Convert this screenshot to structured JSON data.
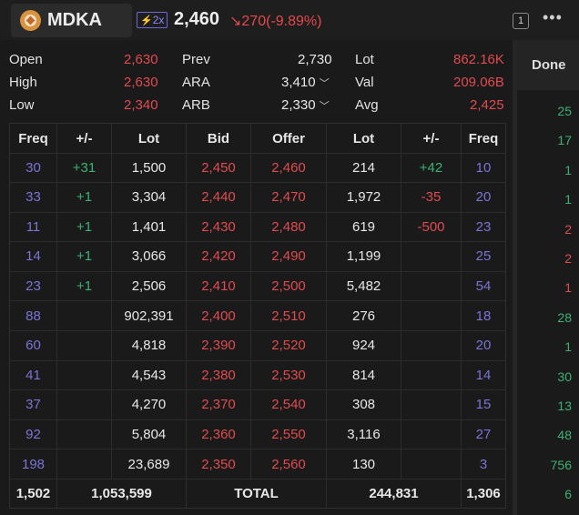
{
  "header": {
    "ticker": "MDKA",
    "leverage": "2x",
    "price": "2,460",
    "change": "270",
    "change_pct": "(-9.89%)",
    "window_number": "1",
    "more_icon": "more-horizontal-icon"
  },
  "summary": {
    "open_label": "Open",
    "open": "2,630",
    "high_label": "High",
    "high": "2,630",
    "low_label": "Low",
    "low": "2,340",
    "prev_label": "Prev",
    "prev": "2,730",
    "ara_label": "ARA",
    "ara": "3,410",
    "arb_label": "ARB",
    "arb": "2,330",
    "lot_label": "Lot",
    "lot": "862.16K",
    "val_label": "Val",
    "val": "209.06B",
    "avg_label": "Avg",
    "avg": "2,425"
  },
  "book": {
    "headers": [
      "Freq",
      "+/-",
      "Lot",
      "Bid",
      "Offer",
      "Lot",
      "+/-",
      "Freq"
    ],
    "rows": [
      [
        "30",
        "+31",
        "1,500",
        "2,450",
        "2,460",
        "214",
        "+42",
        "10"
      ],
      [
        "33",
        "+1",
        "3,304",
        "2,440",
        "2,470",
        "1,972",
        "-35",
        "20"
      ],
      [
        "11",
        "+1",
        "1,401",
        "2,430",
        "2,480",
        "619",
        "-500",
        "23"
      ],
      [
        "14",
        "+1",
        "3,066",
        "2,420",
        "2,490",
        "1,199",
        "",
        "25"
      ],
      [
        "23",
        "+1",
        "2,506",
        "2,410",
        "2,500",
        "5,482",
        "",
        "54"
      ],
      [
        "88",
        "",
        "902,391",
        "2,400",
        "2,510",
        "276",
        "",
        "18"
      ],
      [
        "60",
        "",
        "4,818",
        "2,390",
        "2,520",
        "924",
        "",
        "20"
      ],
      [
        "41",
        "",
        "4,543",
        "2,380",
        "2,530",
        "814",
        "",
        "14"
      ],
      [
        "37",
        "",
        "4,270",
        "2,370",
        "2,540",
        "308",
        "",
        "15"
      ],
      [
        "92",
        "",
        "5,804",
        "2,360",
        "2,550",
        "3,116",
        "",
        "27"
      ],
      [
        "198",
        "",
        "23,689",
        "2,350",
        "2,560",
        "130",
        "",
        "3"
      ]
    ],
    "total": {
      "bid_freq": "1,502",
      "bid_lot": "1,053,599",
      "label": "TOTAL",
      "offer_lot": "244,831",
      "offer_freq": "1,306"
    }
  },
  "done": {
    "header": "Done",
    "values": [
      "25",
      "17",
      "1",
      "1",
      "2",
      "2",
      "1",
      "28",
      "1",
      "30",
      "13",
      "48",
      "756",
      "6"
    ],
    "colors": [
      "green",
      "green",
      "green",
      "green",
      "red",
      "red",
      "red",
      "green",
      "green",
      "green",
      "green",
      "green",
      "green",
      "green"
    ]
  },
  "colors": {
    "background": "#1e1e1e",
    "red": "#e04b4f",
    "green": "#3bb273",
    "purple": "#7a74d6"
  }
}
